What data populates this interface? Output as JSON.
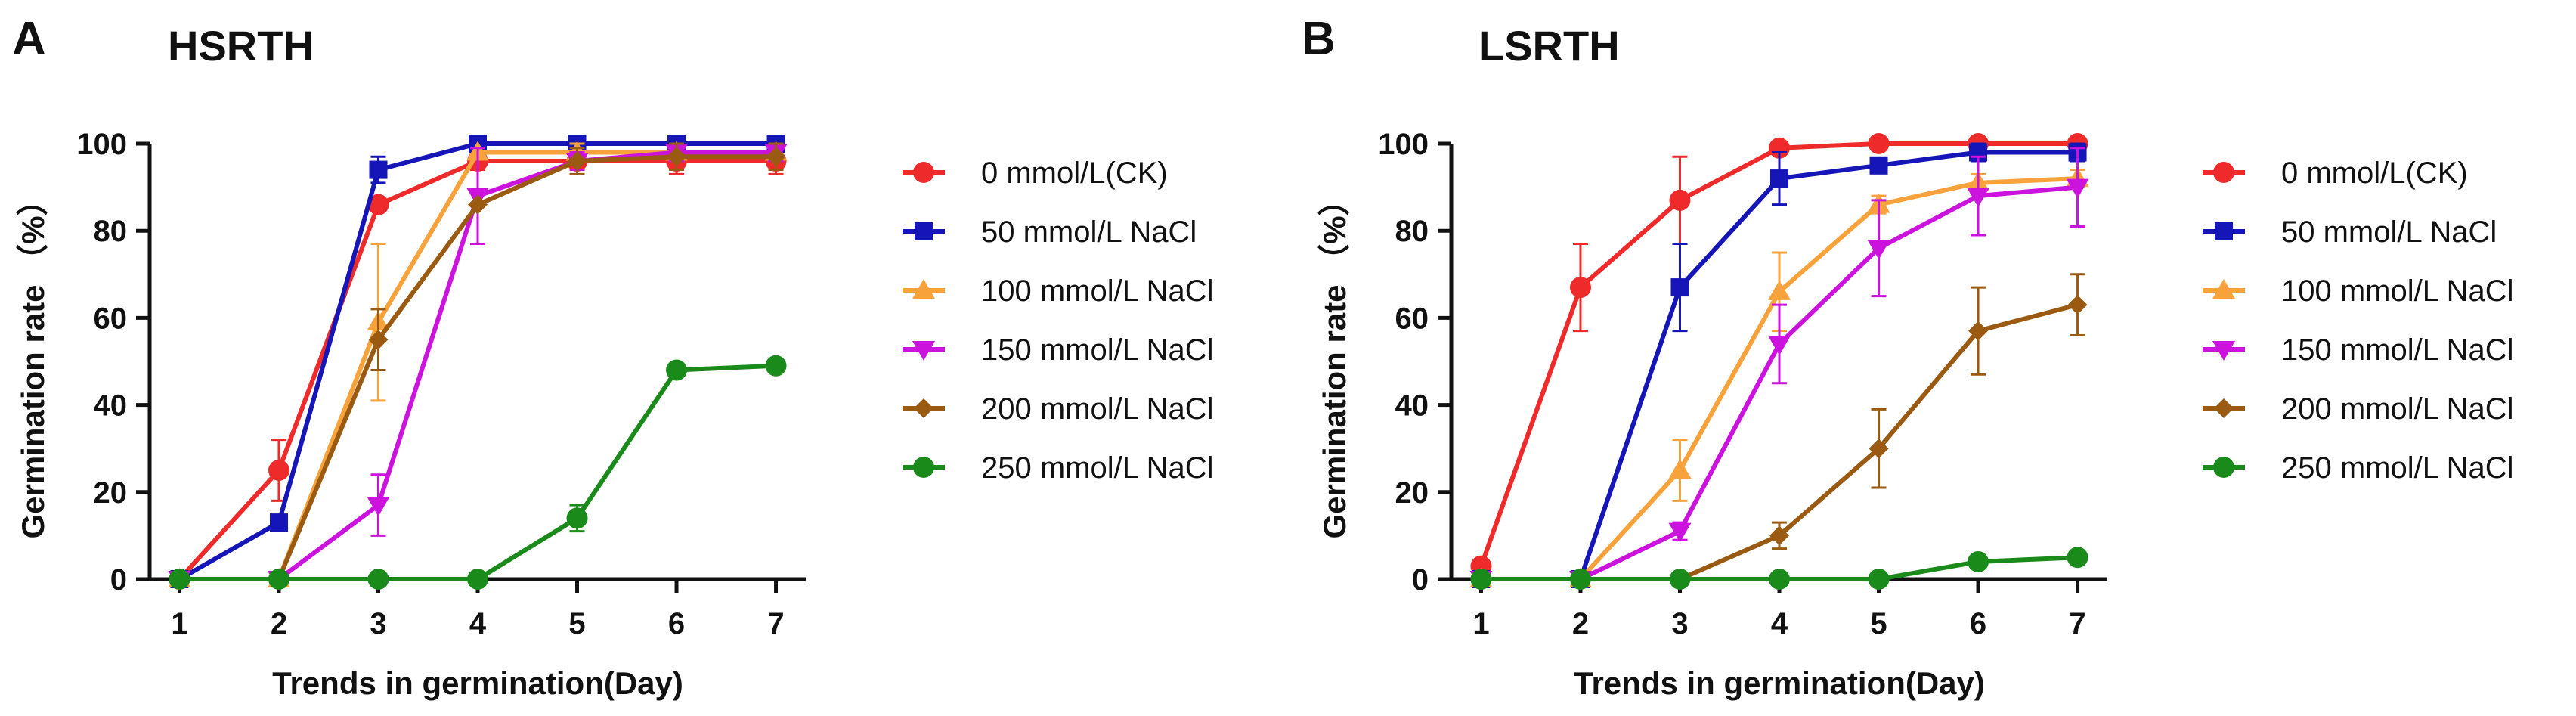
{
  "chart_data": [
    {
      "type": "line",
      "panel": "A",
      "title": "HSRTH",
      "xlabel": "Trends in germination(Day)",
      "ylabel": "Germination rate （%）",
      "xlim": [
        0.7,
        7.3
      ],
      "ylim": [
        0,
        100
      ],
      "x": [
        1,
        2,
        3,
        4,
        5,
        6,
        7
      ],
      "xticks": [
        1,
        2,
        3,
        4,
        5,
        6,
        7
      ],
      "yticks": [
        0,
        20,
        40,
        60,
        80,
        100
      ],
      "legend_position": "right",
      "series": [
        {
          "name": "0 mmol/L(CK)",
          "color": "#ee2a2a",
          "marker": "circle",
          "values": [
            0,
            25,
            86,
            96,
            96,
            96,
            96
          ],
          "errors": [
            0,
            7,
            0,
            2,
            2,
            3,
            3
          ]
        },
        {
          "name": "50 mmol/L NaCl",
          "color": "#1515b8",
          "marker": "square",
          "values": [
            0,
            13,
            94,
            100,
            100,
            100,
            100
          ],
          "errors": [
            0,
            0,
            3,
            0,
            0,
            0,
            0
          ]
        },
        {
          "name": "100 mmol/L NaCl",
          "color": "#f7a23a",
          "marker": "triangle-up",
          "values": [
            0,
            0,
            59,
            98,
            98,
            98,
            98
          ],
          "errors": [
            0,
            0,
            18,
            0,
            2,
            2,
            2
          ]
        },
        {
          "name": "150 mmol/L NaCl",
          "color": "#cc12dd",
          "marker": "triangle-down",
          "values": [
            0,
            0,
            17,
            88,
            96,
            98,
            98
          ],
          "errors": [
            0,
            0,
            7,
            11,
            2,
            2,
            2
          ]
        },
        {
          "name": "200 mmol/L NaCl",
          "color": "#9a5a12",
          "marker": "diamond",
          "values": [
            0,
            0,
            55,
            86,
            96,
            97,
            97
          ],
          "errors": [
            0,
            0,
            7,
            0,
            3,
            3,
            3
          ]
        },
        {
          "name": "250 mmol/L NaCl",
          "color": "#1a8a1a",
          "marker": "circle",
          "values": [
            0,
            0,
            0,
            0,
            14,
            48,
            49
          ],
          "errors": [
            0,
            0,
            0,
            0,
            3,
            0,
            0
          ]
        }
      ]
    },
    {
      "type": "line",
      "panel": "B",
      "title": "LSRTH",
      "xlabel": "Trends in germination(Day)",
      "ylabel": "Germination rate （%）",
      "xlim": [
        0.7,
        7.3
      ],
      "ylim": [
        0,
        100
      ],
      "x": [
        1,
        2,
        3,
        4,
        5,
        6,
        7
      ],
      "xticks": [
        1,
        2,
        3,
        4,
        5,
        6,
        7
      ],
      "yticks": [
        0,
        20,
        40,
        60,
        80,
        100
      ],
      "legend_position": "right",
      "series": [
        {
          "name": "0 mmol/L(CK)",
          "color": "#ee2a2a",
          "marker": "circle",
          "values": [
            3,
            67,
            87,
            99,
            100,
            100,
            100
          ],
          "errors": [
            0,
            10,
            10,
            0,
            0,
            0,
            0
          ]
        },
        {
          "name": "50 mmol/L NaCl",
          "color": "#1515b8",
          "marker": "square",
          "values": [
            0,
            0,
            67,
            92,
            95,
            98,
            98
          ],
          "errors": [
            0,
            0,
            10,
            6,
            0,
            2,
            2
          ]
        },
        {
          "name": "100 mmol/L NaCl",
          "color": "#f7a23a",
          "marker": "triangle-up",
          "values": [
            0,
            0,
            25,
            66,
            86,
            91,
            92
          ],
          "errors": [
            0,
            0,
            7,
            9,
            2,
            2,
            2
          ]
        },
        {
          "name": "150 mmol/L NaCl",
          "color": "#cc12dd",
          "marker": "triangle-down",
          "values": [
            0,
            0,
            11,
            54,
            76,
            88,
            90
          ],
          "errors": [
            0,
            0,
            2,
            9,
            11,
            9,
            9
          ]
        },
        {
          "name": "200 mmol/L NaCl",
          "color": "#9a5a12",
          "marker": "diamond",
          "values": [
            0,
            0,
            0,
            10,
            30,
            57,
            63
          ],
          "errors": [
            0,
            0,
            0,
            3,
            9,
            10,
            7
          ]
        },
        {
          "name": "250 mmol/L NaCl",
          "color": "#1a8a1a",
          "marker": "circle",
          "values": [
            0,
            0,
            0,
            0,
            0,
            4,
            5
          ],
          "errors": [
            0,
            0,
            0,
            0,
            0,
            0,
            0
          ]
        }
      ]
    }
  ]
}
